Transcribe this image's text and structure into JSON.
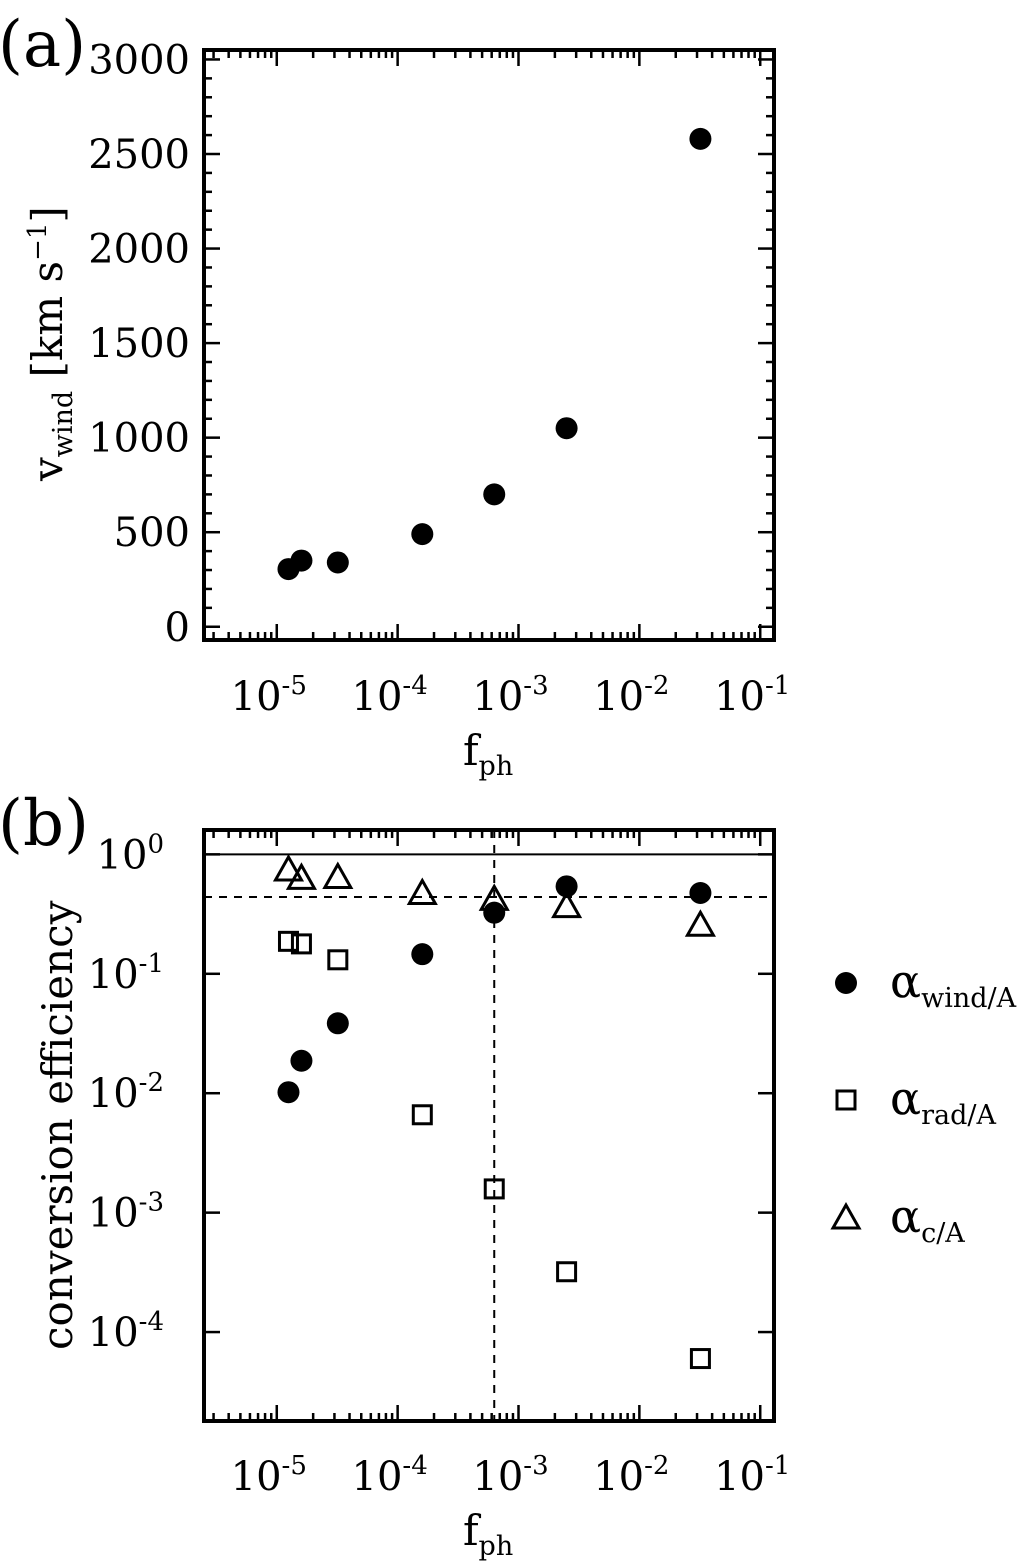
{
  "figure": {
    "panel_a_label": "(a)",
    "panel_b_label": "(b)"
  },
  "chart_data": [
    {
      "type": "scatter",
      "panel": "(a)",
      "xlabel": "f",
      "xlabel_sub": "ph",
      "ylabel": "v",
      "ylabel_sub": "wind",
      "ylabel_unit": " [km s",
      "ylabel_unit_sup": "−1",
      "ylabel_unit_close": "]",
      "xscale": "log",
      "xlim": [
        2.5e-06,
        0.13
      ],
      "ylim": [
        -70,
        3050
      ],
      "x_ticks": [
        {
          "value": 1e-05,
          "base": "10",
          "exp": "-5"
        },
        {
          "value": 0.0001,
          "base": "10",
          "exp": "-4"
        },
        {
          "value": 0.001,
          "base": "10",
          "exp": "-3"
        },
        {
          "value": 0.01,
          "base": "10",
          "exp": "-2"
        },
        {
          "value": 0.1,
          "base": "10",
          "exp": "-1"
        }
      ],
      "y_ticks": [
        "0",
        "500",
        "1000",
        "1500",
        "2000",
        "2500",
        "3000"
      ],
      "series": [
        {
          "marker": "filled-circle",
          "points": [
            {
              "x": 1.25e-05,
              "y": 305
            },
            {
              "x": 1.6e-05,
              "y": 350
            },
            {
              "x": 3.2e-05,
              "y": 340
            },
            {
              "x": 0.00016,
              "y": 490
            },
            {
              "x": 0.00063,
              "y": 700
            },
            {
              "x": 0.0025,
              "y": 1050
            },
            {
              "x": 0.032,
              "y": 2580
            }
          ]
        }
      ]
    },
    {
      "type": "scatter",
      "panel": "(b)",
      "xlabel": "f",
      "xlabel_sub": "ph",
      "ylabel": "conversion efficiency",
      "xscale": "log",
      "yscale": "log",
      "xlim": [
        2.5e-06,
        0.13
      ],
      "ylim": [
        1.8e-05,
        1.6
      ],
      "x_ticks": [
        {
          "value": 1e-05,
          "base": "10",
          "exp": "-5"
        },
        {
          "value": 0.0001,
          "base": "10",
          "exp": "-4"
        },
        {
          "value": 0.001,
          "base": "10",
          "exp": "-3"
        },
        {
          "value": 0.01,
          "base": "10",
          "exp": "-2"
        },
        {
          "value": 0.1,
          "base": "10",
          "exp": "-1"
        }
      ],
      "y_ticks": [
        {
          "value": 0.0001,
          "base": "10",
          "exp": "-4"
        },
        {
          "value": 0.001,
          "base": "10",
          "exp": "-3"
        },
        {
          "value": 0.01,
          "base": "10",
          "exp": "-2"
        },
        {
          "value": 0.1,
          "base": "10",
          "exp": "-1"
        },
        {
          "value": 1,
          "base": "10",
          "exp": "0"
        }
      ],
      "reference_lines": [
        {
          "orientation": "horizontal",
          "value": 1.0,
          "style": "solid"
        },
        {
          "orientation": "horizontal",
          "value": 0.44,
          "style": "dashed"
        },
        {
          "orientation": "vertical",
          "value": 0.00063,
          "style": "dashed"
        }
      ],
      "legend_position": "right",
      "series": [
        {
          "name": "α",
          "name_sub": "wind/A",
          "marker": "filled-circle",
          "points": [
            {
              "x": 1.25e-05,
              "y": 0.0102
            },
            {
              "x": 1.6e-05,
              "y": 0.0187
            },
            {
              "x": 3.2e-05,
              "y": 0.0385
            },
            {
              "x": 0.00016,
              "y": 0.146
            },
            {
              "x": 0.00063,
              "y": 0.325
            },
            {
              "x": 0.0025,
              "y": 0.54
            },
            {
              "x": 0.032,
              "y": 0.475
            }
          ]
        },
        {
          "name": "α",
          "name_sub": "rad/A",
          "marker": "open-square",
          "points": [
            {
              "x": 1.25e-05,
              "y": 0.187
            },
            {
              "x": 1.6e-05,
              "y": 0.178
            },
            {
              "x": 3.2e-05,
              "y": 0.131
            },
            {
              "x": 0.00016,
              "y": 0.0066
            },
            {
              "x": 0.00063,
              "y": 0.00158
            },
            {
              "x": 0.0025,
              "y": 0.00032
            },
            {
              "x": 0.032,
              "y": 6e-05
            }
          ]
        },
        {
          "name": "α",
          "name_sub": "c/A",
          "marker": "open-triangle",
          "points": [
            {
              "x": 1.25e-05,
              "y": 0.74
            },
            {
              "x": 1.6e-05,
              "y": 0.63
            },
            {
              "x": 3.2e-05,
              "y": 0.64
            },
            {
              "x": 0.00016,
              "y": 0.47
            },
            {
              "x": 0.00063,
              "y": 0.42
            },
            {
              "x": 0.0025,
              "y": 0.365
            },
            {
              "x": 0.032,
              "y": 0.255
            }
          ]
        }
      ]
    }
  ]
}
